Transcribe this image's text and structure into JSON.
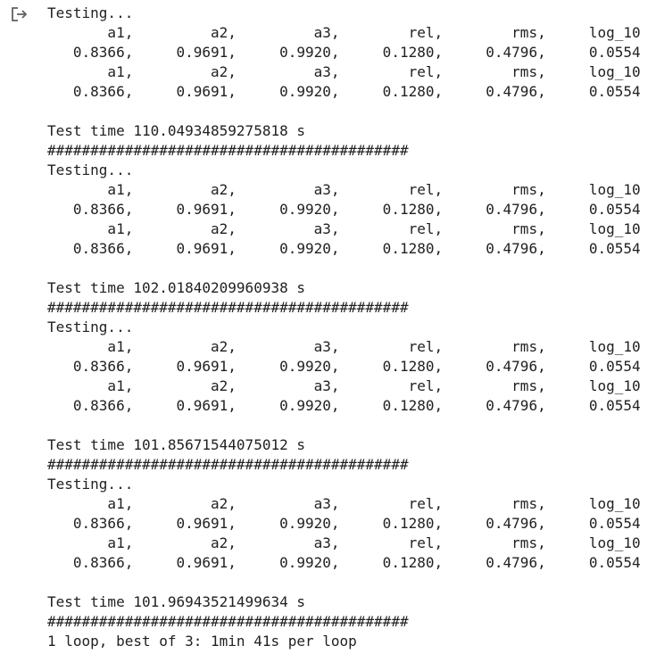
{
  "output": {
    "icon": "exit-to-app-icon",
    "lines": [
      "Testing...",
      "       a1,         a2,         a3,        rel,        rms,     log_10",
      "   0.8366,     0.9691,     0.9920,     0.1280,     0.4796,     0.0554",
      "       a1,         a2,         a3,        rel,        rms,     log_10",
      "   0.8366,     0.9691,     0.9920,     0.1280,     0.4796,     0.0554",
      "",
      "Test time 110.04934859275818 s",
      "##########################################",
      "Testing...",
      "       a1,         a2,         a3,        rel,        rms,     log_10",
      "   0.8366,     0.9691,     0.9920,     0.1280,     0.4796,     0.0554",
      "       a1,         a2,         a3,        rel,        rms,     log_10",
      "   0.8366,     0.9691,     0.9920,     0.1280,     0.4796,     0.0554",
      "",
      "Test time 102.01840209960938 s",
      "##########################################",
      "Testing...",
      "       a1,         a2,         a3,        rel,        rms,     log_10",
      "   0.8366,     0.9691,     0.9920,     0.1280,     0.4796,     0.0554",
      "       a1,         a2,         a3,        rel,        rms,     log_10",
      "   0.8366,     0.9691,     0.9920,     0.1280,     0.4796,     0.0554",
      "",
      "Test time 101.85671544075012 s",
      "##########################################",
      "Testing...",
      "       a1,         a2,         a3,        rel,        rms,     log_10",
      "   0.8366,     0.9691,     0.9920,     0.1280,     0.4796,     0.0554",
      "       a1,         a2,         a3,        rel,        rms,     log_10",
      "   0.8366,     0.9691,     0.9920,     0.1280,     0.4796,     0.0554",
      "",
      "Test time 101.96943521499634 s",
      "##########################################",
      "1 loop, best of 3: 1min 41s per loop"
    ]
  }
}
